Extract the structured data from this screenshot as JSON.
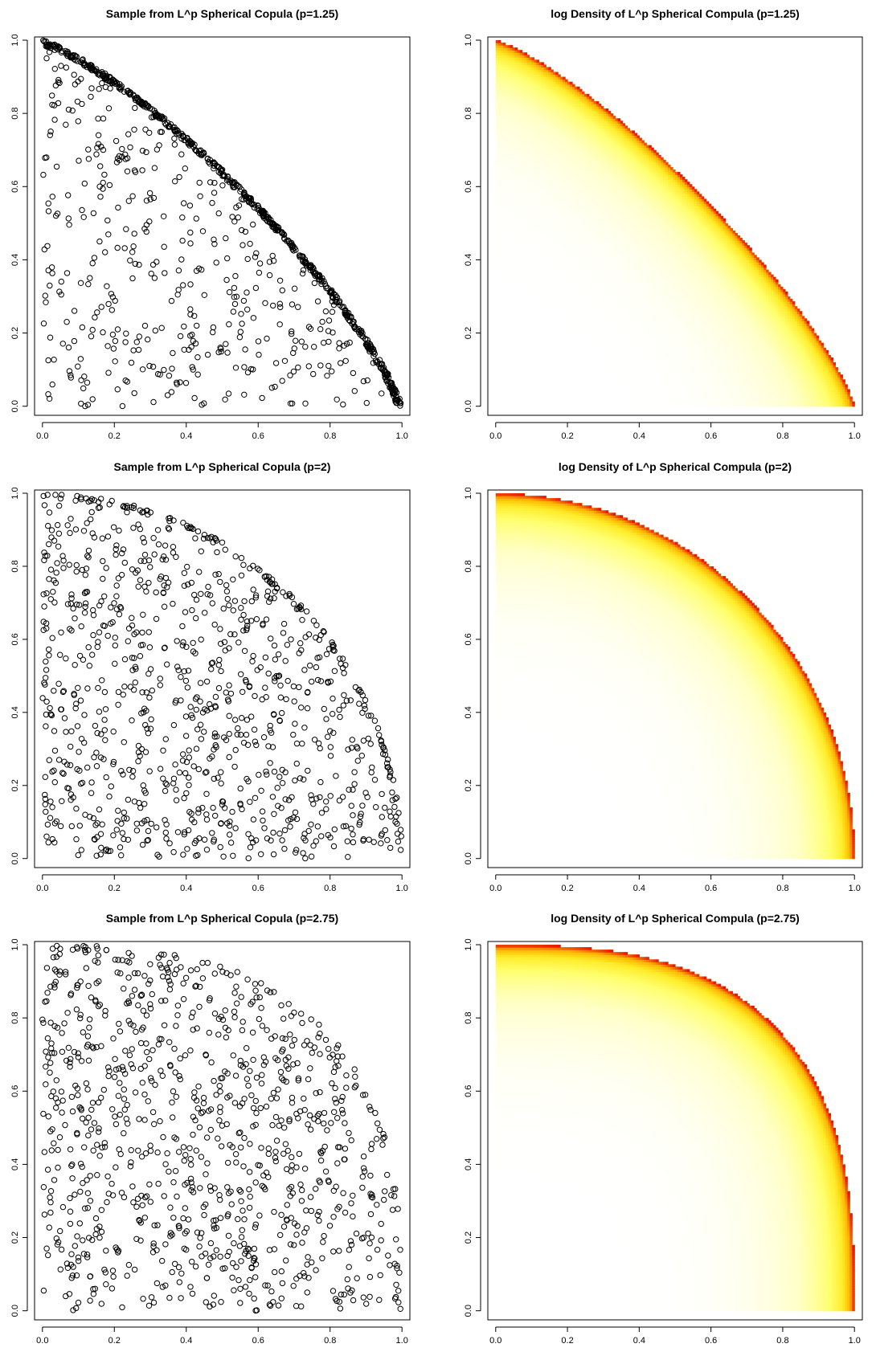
{
  "chart_data": [
    {
      "type": "scatter",
      "title": "Sample from L^p Spherical Copula (p=1.25)",
      "p": 1.25,
      "n_points": 1000,
      "xlim": [
        0,
        1
      ],
      "ylim": [
        0,
        1
      ],
      "x_ticks": [
        "0.0",
        "0.2",
        "0.4",
        "0.6",
        "0.8",
        "1.0"
      ],
      "y_ticks": [
        "0.0",
        "0.2",
        "0.4",
        "0.6",
        "0.8",
        "1.0"
      ],
      "xlabel": "",
      "ylabel": "",
      "marker": "open-circle"
    },
    {
      "type": "heatmap",
      "title": "log Density of L^p Spherical Compula (p=1.25)",
      "p": 1.25,
      "xlim": [
        0,
        1
      ],
      "ylim": [
        0,
        1
      ],
      "x_ticks": [
        "0.0",
        "0.2",
        "0.4",
        "0.6",
        "0.8",
        "1.0"
      ],
      "y_ticks": [
        "0.0",
        "0.2",
        "0.4",
        "0.6",
        "0.8",
        "1.0"
      ],
      "xlabel": "",
      "ylabel": "",
      "palette": [
        "#ffffff",
        "#ffffa8",
        "#ffff66",
        "#ffd700",
        "#ff8c00",
        "#ff0000"
      ]
    },
    {
      "type": "scatter",
      "title": "Sample from L^p Spherical Copula (p=2)",
      "p": 2,
      "n_points": 1000,
      "xlim": [
        0,
        1
      ],
      "ylim": [
        0,
        1
      ],
      "x_ticks": [
        "0.0",
        "0.2",
        "0.4",
        "0.6",
        "0.8",
        "1.0"
      ],
      "y_ticks": [
        "0.0",
        "0.2",
        "0.4",
        "0.6",
        "0.8",
        "1.0"
      ],
      "xlabel": "",
      "ylabel": "",
      "marker": "open-circle"
    },
    {
      "type": "heatmap",
      "title": "log Density of L^p Spherical Compula (p=2)",
      "p": 2,
      "xlim": [
        0,
        1
      ],
      "ylim": [
        0,
        1
      ],
      "x_ticks": [
        "0.0",
        "0.2",
        "0.4",
        "0.6",
        "0.8",
        "1.0"
      ],
      "y_ticks": [
        "0.0",
        "0.2",
        "0.4",
        "0.6",
        "0.8",
        "1.0"
      ],
      "xlabel": "",
      "ylabel": "",
      "palette": [
        "#ffffff",
        "#ffffa8",
        "#ffff66",
        "#ffd700",
        "#ff8c00",
        "#ff0000"
      ]
    },
    {
      "type": "scatter",
      "title": "Sample from L^p Spherical Copula (p=2.75)",
      "p": 2.75,
      "n_points": 1000,
      "xlim": [
        0,
        1
      ],
      "ylim": [
        0,
        1
      ],
      "x_ticks": [
        "0.0",
        "0.2",
        "0.4",
        "0.6",
        "0.8",
        "1.0"
      ],
      "y_ticks": [
        "0.0",
        "0.2",
        "0.4",
        "0.6",
        "0.8",
        "1.0"
      ],
      "xlabel": "",
      "ylabel": "",
      "marker": "open-circle"
    },
    {
      "type": "heatmap",
      "title": "log Density of L^p Spherical Compula (p=2.75)",
      "p": 2.75,
      "xlim": [
        0,
        1
      ],
      "ylim": [
        0,
        1
      ],
      "x_ticks": [
        "0.0",
        "0.2",
        "0.4",
        "0.6",
        "0.8",
        "1.0"
      ],
      "y_ticks": [
        "0.0",
        "0.2",
        "0.4",
        "0.6",
        "0.8",
        "1.0"
      ],
      "xlabel": "",
      "ylabel": "",
      "palette": [
        "#ffffff",
        "#ffffa8",
        "#ffff66",
        "#ffd700",
        "#ff8c00",
        "#ff0000"
      ]
    }
  ]
}
